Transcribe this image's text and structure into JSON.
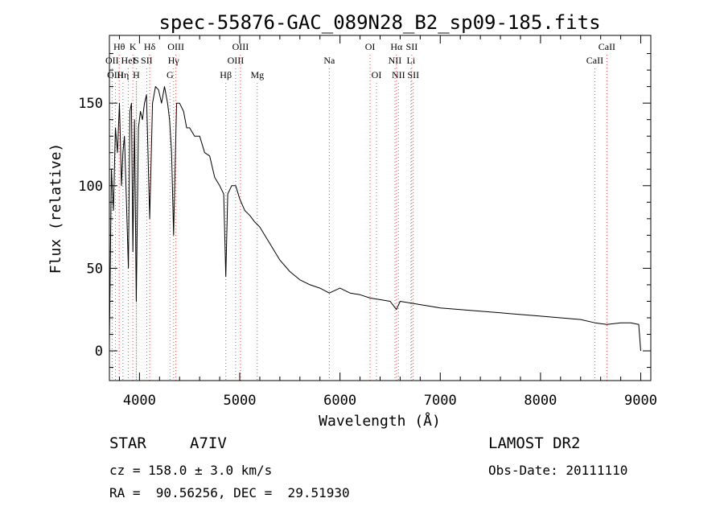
{
  "chart_data": {
    "type": "line",
    "title": "spec-55876-GAC_089N28_B2_sp09-185.fits",
    "xlabel": "Wavelength (Å)",
    "ylabel": "Flux (relative)",
    "xlim": [
      3700,
      9100
    ],
    "ylim": [
      -18,
      191
    ],
    "x_ticks": [
      4000,
      5000,
      6000,
      7000,
      8000,
      9000
    ],
    "x_tick_labels": [
      "4000",
      "5000",
      "6000",
      "7000",
      "8000",
      "9000"
    ],
    "y_ticks": [
      0,
      50,
      100,
      150
    ],
    "y_tick_labels": [
      "0",
      "50",
      "100",
      "150"
    ],
    "grid": false,
    "series": [
      {
        "x": [
          3700,
          3720,
          3740,
          3760,
          3780,
          3800,
          3820,
          3835,
          3850,
          3870,
          3889,
          3905,
          3920,
          3934,
          3950,
          3968,
          3990,
          4010,
          4030,
          4050,
          4070,
          4102,
          4130,
          4160,
          4190,
          4220,
          4250,
          4280,
          4300,
          4320,
          4340,
          4370,
          4400,
          4440,
          4470,
          4500,
          4550,
          4600,
          4650,
          4700,
          4750,
          4800,
          4840,
          4861,
          4880,
          4920,
          4960,
          5000,
          5050,
          5100,
          5150,
          5200,
          5300,
          5400,
          5500,
          5600,
          5700,
          5800,
          5893,
          6000,
          6100,
          6200,
          6300,
          6400,
          6500,
          6563,
          6600,
          6700,
          6800,
          6900,
          7000,
          7200,
          7400,
          7600,
          7800,
          8000,
          8200,
          8400,
          8542,
          8662,
          8800,
          8900,
          8980,
          9000
        ],
        "y": [
          5,
          110,
          85,
          135,
          120,
          150,
          100,
          120,
          130,
          90,
          50,
          145,
          150,
          60,
          140,
          30,
          135,
          145,
          140,
          150,
          155,
          80,
          150,
          160,
          158,
          150,
          160,
          150,
          140,
          120,
          70,
          150,
          150,
          145,
          135,
          135,
          130,
          130,
          120,
          118,
          105,
          100,
          95,
          45,
          95,
          100,
          100,
          92,
          85,
          82,
          78,
          75,
          65,
          55,
          48,
          43,
          40,
          38,
          35,
          38,
          35,
          34,
          32,
          31,
          30,
          25,
          30,
          29,
          28,
          27,
          26,
          25,
          24,
          23,
          22,
          21,
          20,
          19,
          17,
          16,
          17,
          17,
          16,
          0
        ]
      }
    ],
    "lines": [
      {
        "label": "Hθ",
        "x": 3798,
        "row": 1
      },
      {
        "label": "OII",
        "x": 3727,
        "row": 2
      },
      {
        "label": "OIII",
        "x": 3760,
        "row": 3
      },
      {
        "label": "K",
        "x": 3934,
        "row": 1
      },
      {
        "label": "HeI",
        "x": 3889,
        "row": 2
      },
      {
        "label": "Hη",
        "x": 3835,
        "row": 3
      },
      {
        "label": "S",
        "x": 3970,
        "row": 2
      },
      {
        "label": "H",
        "x": 3968,
        "row": 3
      },
      {
        "label": "Hδ",
        "x": 4102,
        "row": 1
      },
      {
        "label": "SII",
        "x": 4072,
        "row": 2
      },
      {
        "label": "OIII",
        "x": 4363,
        "row": 1
      },
      {
        "label": "Hγ",
        "x": 4340,
        "row": 2
      },
      {
        "label": "G",
        "x": 4304,
        "row": 3
      },
      {
        "label": "OIII",
        "x": 5007,
        "row": 1
      },
      {
        "label": "OIII",
        "x": 4959,
        "row": 2
      },
      {
        "label": "Hβ",
        "x": 4861,
        "row": 3
      },
      {
        "label": "Mg",
        "x": 5175,
        "row": 3
      },
      {
        "label": "Na",
        "x": 5893,
        "row": 2
      },
      {
        "label": "OI",
        "x": 6300,
        "row": 1
      },
      {
        "label": "OI",
        "x": 6364,
        "row": 3
      },
      {
        "label": "Hα",
        "x": 6563,
        "row": 1
      },
      {
        "label": "NII",
        "x": 6548,
        "row": 2
      },
      {
        "label": "NII",
        "x": 6583,
        "row": 3
      },
      {
        "label": "SII",
        "x": 6716,
        "row": 1
      },
      {
        "label": "Li",
        "x": 6708,
        "row": 2
      },
      {
        "label": "SII",
        "x": 6731,
        "row": 3
      },
      {
        "label": "CaII",
        "x": 8662,
        "row": 1
      },
      {
        "label": "CaII",
        "x": 8542,
        "row": 2
      }
    ]
  },
  "info": {
    "object": "STAR",
    "subclass": "A7IV",
    "survey": "LAMOST DR2",
    "cz": "cz = 158.0 ± 3.0 km/s",
    "obs_date": "Obs-Date: 20111110",
    "coords": "RA =  90.56256, DEC =  29.51930"
  },
  "colors": {
    "line_marker": "#e05050",
    "axes": "#000000",
    "spectrum": "#000000"
  }
}
